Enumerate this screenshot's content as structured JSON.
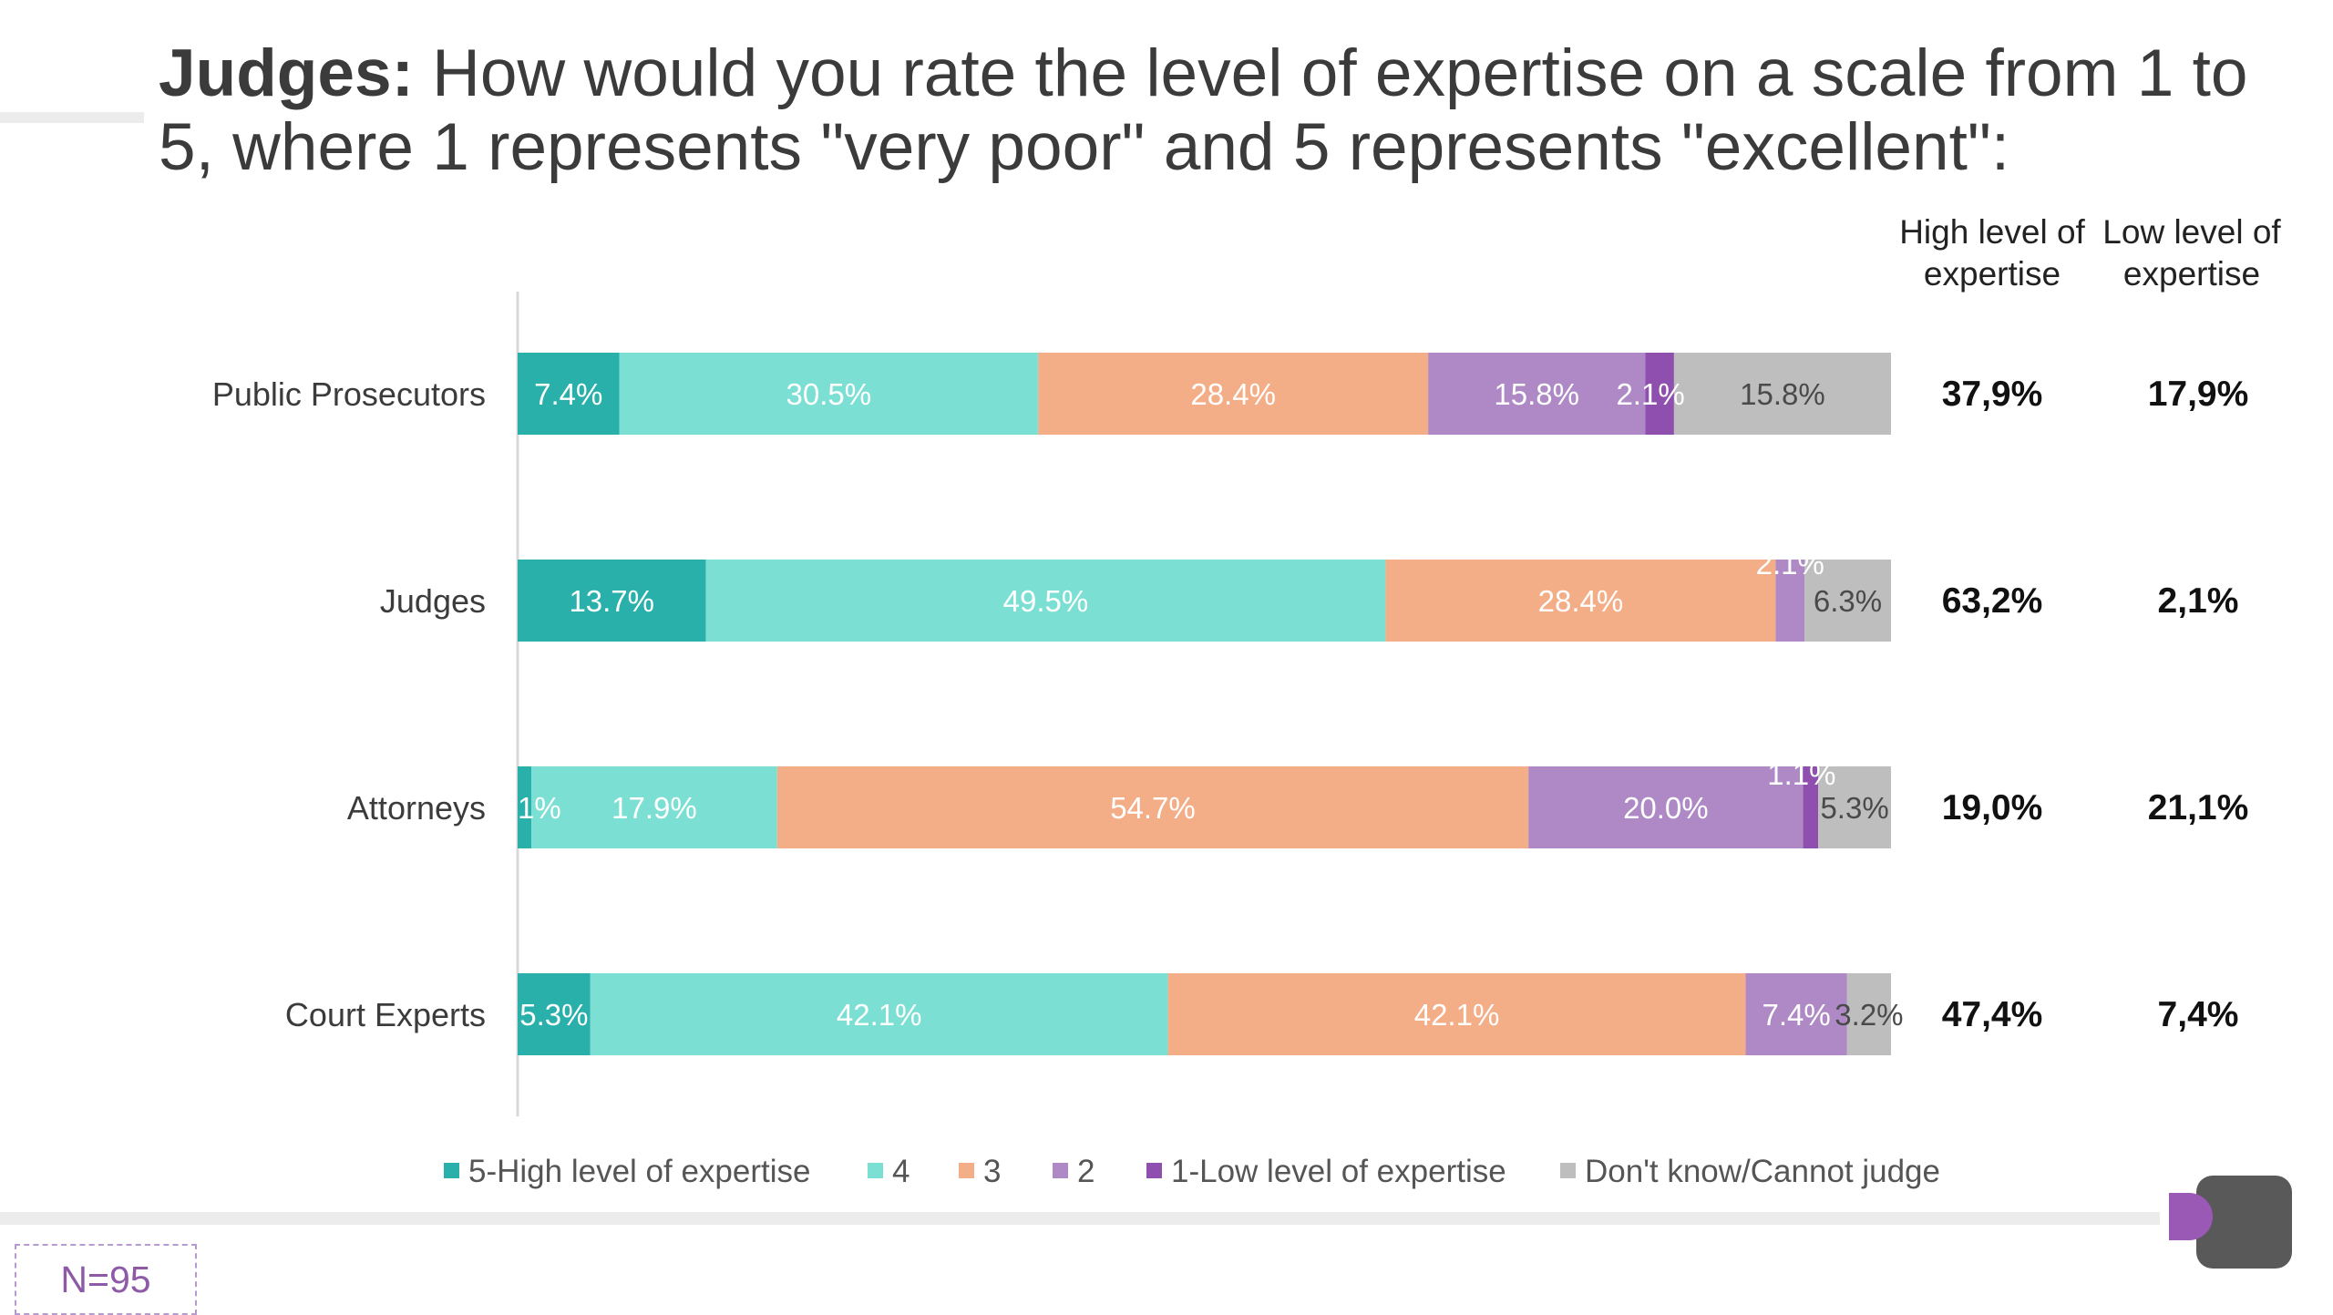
{
  "title": {
    "bold": "Judges:",
    "rest": " How would you rate the level of expertise on a scale from 1 to 5, where 1 represents \"very poor\" and 5 represents \"excellent\":"
  },
  "columns": {
    "high_header": "High level of expertise",
    "low_header": "Low level of expertise"
  },
  "footer": {
    "sample_size": "N=95"
  },
  "colors": {
    "5-High level of expertise": "#2ab0ab",
    "4": "#7cdfd3",
    "3": "#f4ae87",
    "2": "#ae89c5",
    "1-Low level of expertise": "#8e4fae",
    "Don't know/Cannot judge": "#bebebe"
  },
  "chart_data": {
    "type": "bar",
    "orientation": "horizontal",
    "stacked": true,
    "categories": [
      "Public Prosecutors",
      "Judges",
      "Attorneys",
      "Court Experts"
    ],
    "series": [
      {
        "name": "5-High level of expertise",
        "values": [
          7.4,
          13.7,
          1.0,
          5.3
        ],
        "labels": [
          "7.4%",
          "13.7%",
          "1%",
          "5.3%"
        ]
      },
      {
        "name": "4",
        "values": [
          30.5,
          49.5,
          17.9,
          42.1
        ],
        "labels": [
          "30.5%",
          "49.5%",
          "17.9%",
          "42.1%"
        ]
      },
      {
        "name": "3",
        "values": [
          28.4,
          28.4,
          54.7,
          42.1
        ],
        "labels": [
          "28.4%",
          "28.4%",
          "54.7%",
          "42.1%"
        ]
      },
      {
        "name": "2",
        "values": [
          15.8,
          2.1,
          20.0,
          7.4
        ],
        "labels": [
          "15.8%",
          "2.1%",
          "20.0%",
          "7.4%"
        ]
      },
      {
        "name": "1-Low level of expertise",
        "values": [
          2.1,
          0.0,
          1.1,
          0.0
        ],
        "labels": [
          "2.1%",
          "",
          "1.1%",
          ""
        ]
      },
      {
        "name": "Don't know/Cannot judge",
        "values": [
          15.8,
          6.3,
          5.3,
          3.2
        ],
        "labels": [
          "15.8%",
          "6.3%",
          "5.3%",
          "3.2%"
        ]
      }
    ],
    "high_level": [
      "37,9%",
      "63,2%",
      "19,0%",
      "47,4%"
    ],
    "low_level": [
      "17,9%",
      "2,1%",
      "21,1%",
      "7,4%"
    ],
    "xlim": [
      0,
      100
    ],
    "legend_position": "bottom",
    "grid": false
  }
}
